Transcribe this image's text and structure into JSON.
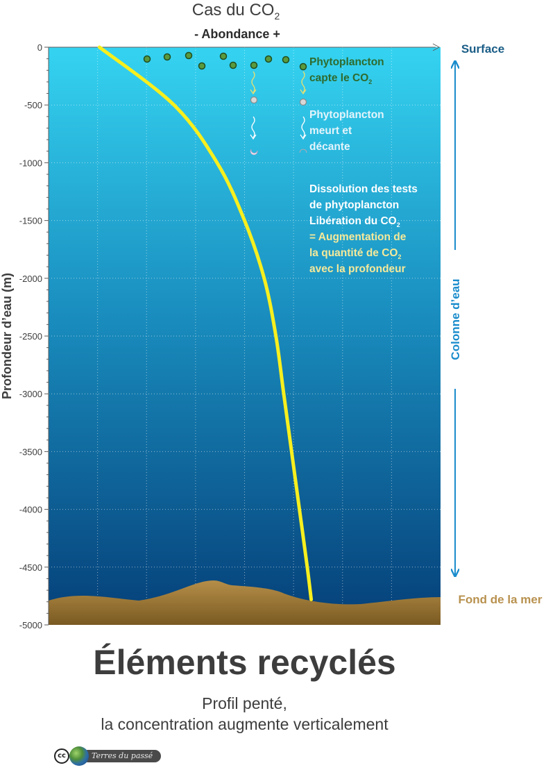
{
  "header": {
    "title": "Cas du CO",
    "title_subscript": "2",
    "abundance_axis_label": "- Abondance +"
  },
  "axis": {
    "y_label": "Profondeur d’eau (m)",
    "y_ticks": [
      "0",
      "-500",
      "-1000",
      "-1500",
      "-2000",
      "-2500",
      "-3000",
      "-3500",
      "-4000",
      "-4500",
      "-5000"
    ]
  },
  "annotations": {
    "phyto_capture": {
      "line1": "Phytoplancton",
      "line2": "capte le CO",
      "sub": "2"
    },
    "phyto_dies": {
      "line1": "Phytoplancton",
      "line2": "meurt et",
      "line3": "décante"
    },
    "dissolution": {
      "line1": "Dissolution des tests",
      "line2": "de phytoplancton",
      "line3": "Libération du CO",
      "line3_sub": "2",
      "line4": "= Augmentation de",
      "line5": "la quantité de CO",
      "line5_sub": "2",
      "line6": "avec la profondeur"
    }
  },
  "right_panel": {
    "surface": "Surface",
    "column": "Colonne d’eau",
    "seafloor": "Fond de la mer"
  },
  "footer": {
    "title": "Éléments recyclés",
    "subtitle_line1": "Profil penté,",
    "subtitle_line2": "la concentration augmente verticalement",
    "logo_cc": "cc",
    "logo_text": "Terres du passé"
  },
  "colors": {
    "water_top": "#35d3f1",
    "water_bottom": "#053f78",
    "sediment": "#b08a45",
    "profile_line": "#f7ef1e",
    "phyto_green": "#2e6b2e",
    "surface_blue": "#1a5d86",
    "column_blue": "#1a8ccc",
    "seafloor_brown": "#b8914f",
    "highlight_yellow": "#f5e99a"
  },
  "chart_data": {
    "type": "line",
    "title": "Cas du CO2",
    "xlabel": "- Abondance +",
    "ylabel": "Profondeur d’eau (m)",
    "ylim": [
      -5000,
      0
    ],
    "y_ticks": [
      0,
      -500,
      -1000,
      -1500,
      -2000,
      -2500,
      -3000,
      -3500,
      -4000,
      -4500,
      -5000
    ],
    "series": [
      {
        "depth": [
          0,
          -500,
          -1000,
          -1500,
          -2000,
          -2500,
          -3000,
          -3500,
          -4000,
          -4500,
          -4780
        ],
        "relative_abundance": [
          0.13,
          0.32,
          0.43,
          0.5,
          0.55,
          0.58,
          0.6,
          0.62,
          0.64,
          0.66,
          0.67
        ]
      }
    ]
  }
}
